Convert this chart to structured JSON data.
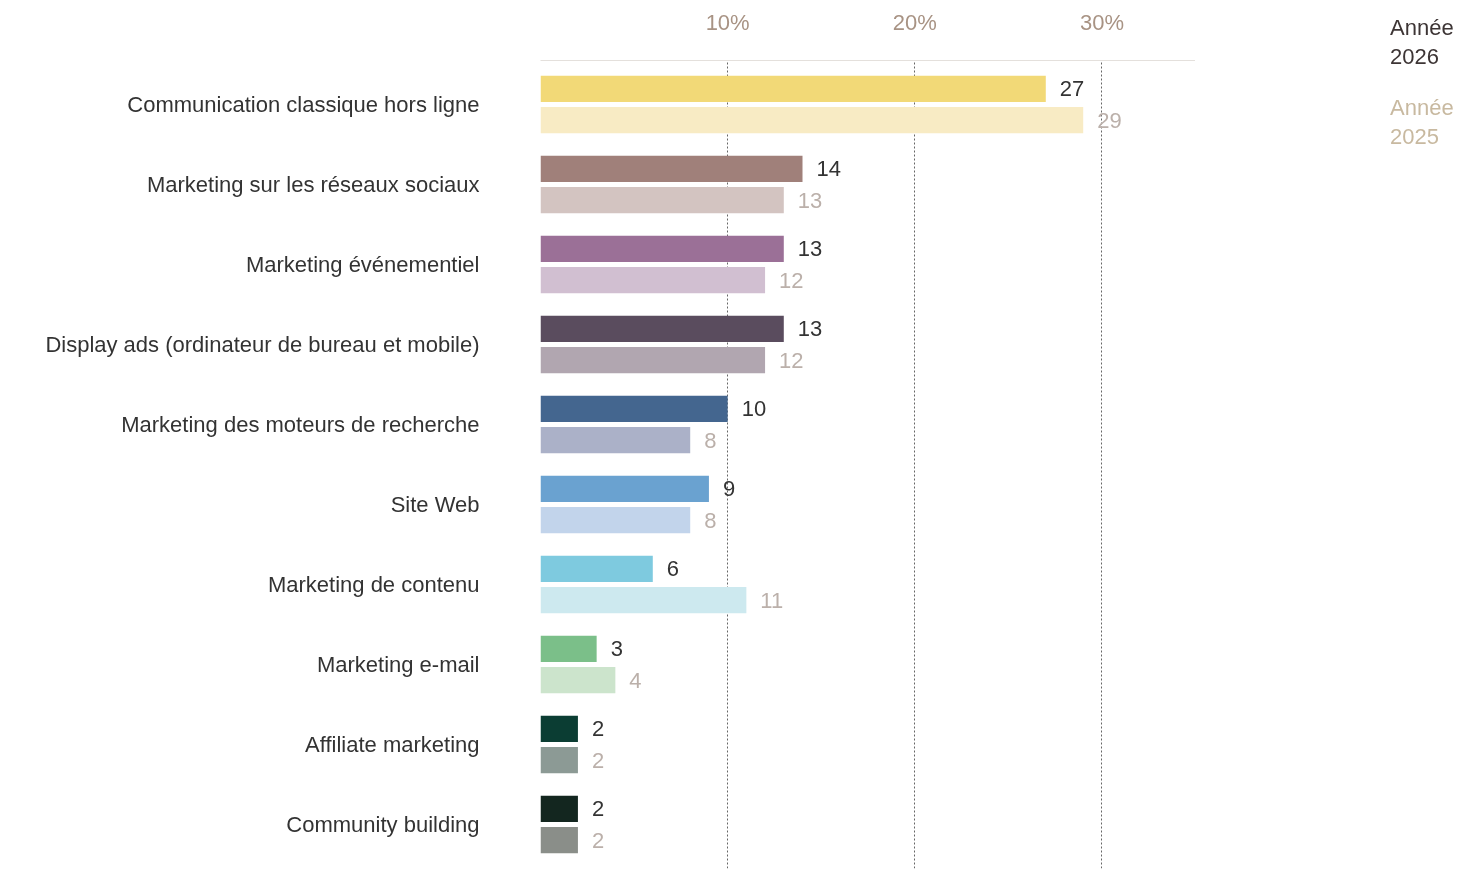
{
  "chart_data": {
    "type": "bar",
    "orientation": "horizontal",
    "categories": [
      "Communication classique hors ligne",
      "Marketing sur les réseaux sociaux",
      "Marketing événementiel",
      "Display ads (ordinateur de bureau et mobile)",
      "Marketing des moteurs de recherche",
      "Site Web",
      "Marketing de contenu",
      "Marketing e-mail",
      "Affiliate marketing",
      "Community building"
    ],
    "series": [
      {
        "name": "Année 2026",
        "color": "#3d3535",
        "colors": [
          "#f2d977",
          "#a0807a",
          "#9b7097",
          "#5a4c5e",
          "#44668f",
          "#6aa2d0",
          "#7ecadf",
          "#7bbf89",
          "#0b3d33",
          "#13261f"
        ],
        "values": [
          27,
          14,
          13,
          13,
          10,
          9,
          6,
          3,
          2,
          2
        ]
      },
      {
        "name": "Année 2025",
        "color": "#c8b9a0",
        "colors": [
          "#f8ebc4",
          "#d3c4c1",
          "#d1bfd1",
          "#b1a6b0",
          "#abb1c8",
          "#c2d4eb",
          "#cde9ef",
          "#cce4cc",
          "#8c9a95",
          "#8a8e89"
        ],
        "values": [
          29,
          13,
          12,
          12,
          8,
          8,
          11,
          4,
          2,
          2
        ]
      }
    ],
    "xlim": [
      0,
      35
    ],
    "xticks": [
      {
        "value": 10,
        "label": "10%"
      },
      {
        "value": 20,
        "label": "20%"
      },
      {
        "value": 30,
        "label": "30%"
      }
    ],
    "grid": "x",
    "data_labels": true
  }
}
